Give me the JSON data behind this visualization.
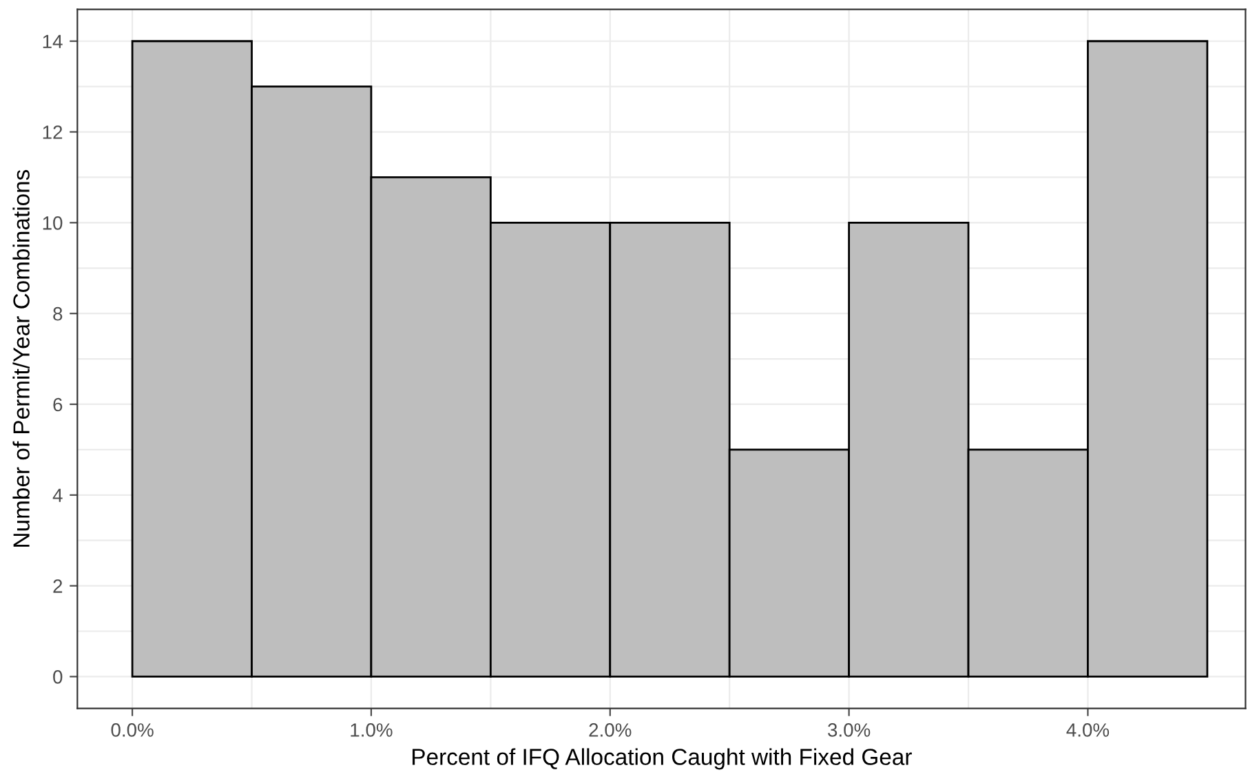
{
  "chart_data": {
    "type": "histogram",
    "xlabel": "Percent of IFQ Allocation Caught with Fixed Gear",
    "ylabel": "Number of Permit/Year Combinations",
    "bins": [
      0,
      0.5,
      1,
      1.5,
      2,
      2.5,
      3,
      3.5,
      4,
      4.5
    ],
    "values": [
      14,
      13,
      11,
      10,
      10,
      5,
      10,
      5,
      14
    ],
    "color": "#bebebe",
    "xlim": [
      -0.23,
      4.66
    ],
    "ylim": [
      -0.7,
      14.7
    ],
    "xticks": [
      {
        "value": 0,
        "label": "0.0%"
      },
      {
        "value": 1,
        "label": "1.0%"
      },
      {
        "value": 2,
        "label": "2.0%"
      },
      {
        "value": 3,
        "label": "3.0%"
      },
      {
        "value": 4,
        "label": "4.0%"
      }
    ],
    "yticks": [
      0,
      2,
      4,
      6,
      8,
      10,
      12,
      14
    ],
    "grid": true
  }
}
